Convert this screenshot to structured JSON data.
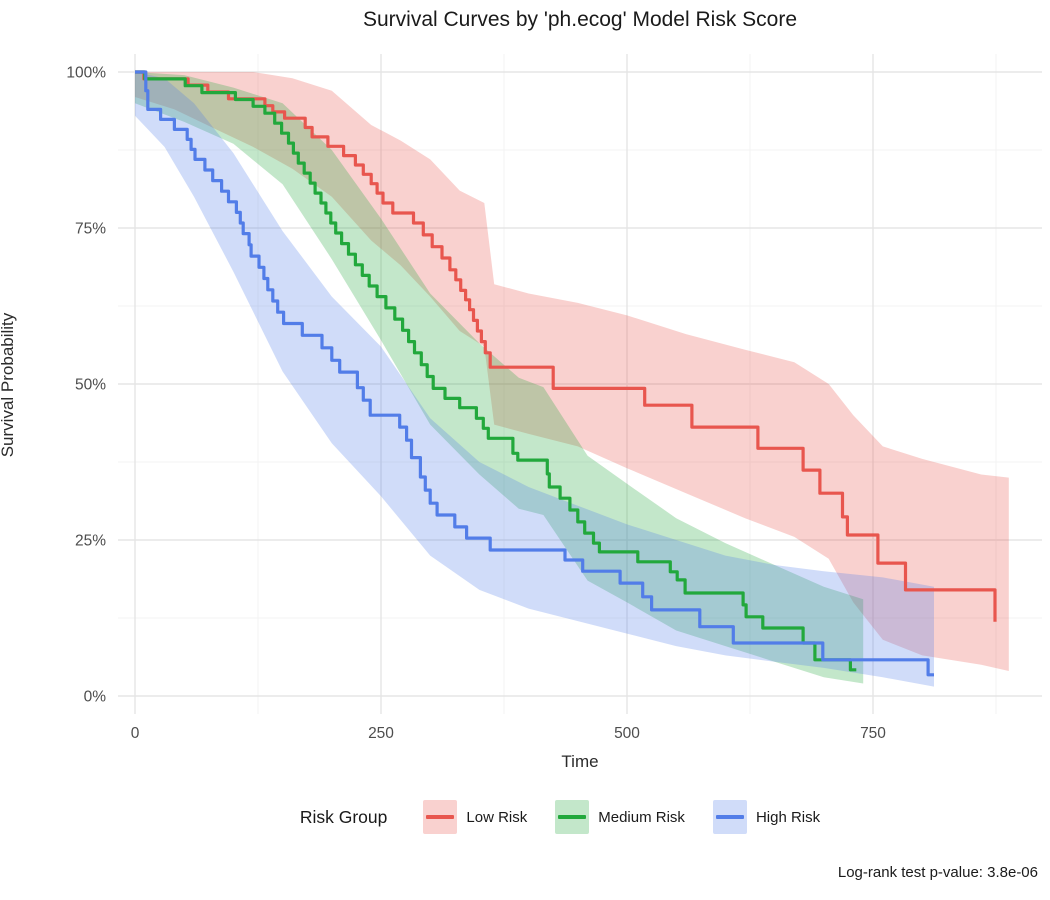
{
  "title": "Survival Curves by 'ph.ecog' Model Risk Score",
  "caption": "Log-rank test p-value: 3.8e-06",
  "x_axis": {
    "label": "Time",
    "ticks": [
      0,
      250,
      500,
      750
    ]
  },
  "y_axis": {
    "label": "Survival Probability",
    "ticks": [
      {
        "v": 0,
        "label": "0%"
      },
      {
        "v": 25,
        "label": "25%"
      },
      {
        "v": 50,
        "label": "50%"
      },
      {
        "v": 75,
        "label": "75%"
      },
      {
        "v": 100,
        "label": "100%"
      }
    ]
  },
  "legend": {
    "title": "Risk Group",
    "items": [
      {
        "label": "Low Risk"
      },
      {
        "label": "Medium Risk"
      },
      {
        "label": "High Risk"
      }
    ]
  },
  "chart_data": {
    "type": "line",
    "subtype": "kaplan-meier-step",
    "title": "Survival Curves by 'ph.ecog' Model Risk Score",
    "xlabel": "Time",
    "ylabel": "Survival Probability",
    "xlim": [
      -17,
      922
    ],
    "ylim": [
      -3,
      103
    ],
    "grid": "on",
    "legend_position": "bottom",
    "series": [
      {
        "name": "Low Risk",
        "color": "#E8564E",
        "fill": "rgba(232,86,78,0.27)",
        "start": [
          0,
          100
        ],
        "steps": [
          [
            9,
            98.9
          ],
          [
            54,
            97.9
          ],
          [
            74,
            96.8
          ],
          [
            95,
            95.7
          ],
          [
            132,
            94.6
          ],
          [
            140,
            93.6
          ],
          [
            152,
            92.6
          ],
          [
            173,
            91.1
          ],
          [
            180,
            89.6
          ],
          [
            196,
            88.1
          ],
          [
            212,
            86.6
          ],
          [
            224,
            85.1
          ],
          [
            232,
            83.6
          ],
          [
            240,
            82.1
          ],
          [
            246,
            80.6
          ],
          [
            252,
            79
          ],
          [
            262,
            77.4
          ],
          [
            283,
            75.8
          ],
          [
            293,
            73.9
          ],
          [
            302,
            72
          ],
          [
            312,
            70.2
          ],
          [
            320,
            68.3
          ],
          [
            326,
            66.7
          ],
          [
            331,
            65
          ],
          [
            336,
            63.5
          ],
          [
            340,
            61.9
          ],
          [
            344,
            60.2
          ],
          [
            348,
            58.5
          ],
          [
            352,
            56.8
          ],
          [
            356,
            55
          ],
          [
            361,
            52.7
          ],
          [
            425,
            49.3
          ],
          [
            518,
            46.6
          ],
          [
            566,
            43.1
          ],
          [
            633,
            39.7
          ],
          [
            679,
            36.2
          ],
          [
            696,
            32.5
          ],
          [
            719,
            28.7
          ],
          [
            724,
            25.8
          ],
          [
            755,
            21.3
          ],
          [
            783,
            17
          ],
          [
            874,
            11.9
          ]
        ],
        "end": 874,
        "ribbon": [
          [
            0,
            96,
            100
          ],
          [
            40,
            94,
            100
          ],
          [
            80,
            91,
            100
          ],
          [
            120,
            88,
            100
          ],
          [
            160,
            84.5,
            99
          ],
          [
            200,
            80,
            97
          ],
          [
            240,
            73,
            91.5
          ],
          [
            270,
            69,
            89
          ],
          [
            300,
            64,
            86
          ],
          [
            330,
            58.5,
            81
          ],
          [
            355,
            56,
            79
          ],
          [
            365,
            43.5,
            66
          ],
          [
            400,
            42,
            64.5
          ],
          [
            450,
            40,
            63
          ],
          [
            500,
            36.5,
            61
          ],
          [
            560,
            32.5,
            58
          ],
          [
            620,
            28.5,
            55.5
          ],
          [
            670,
            25.5,
            53.5
          ],
          [
            705,
            22,
            50
          ],
          [
            730,
            15,
            45
          ],
          [
            760,
            9,
            40
          ],
          [
            800,
            6.5,
            38
          ],
          [
            860,
            5,
            35.5
          ],
          [
            888,
            4,
            35
          ]
        ]
      },
      {
        "name": "Medium Risk",
        "color": "#22A83C",
        "fill": "rgba(34,168,60,0.27)",
        "start": [
          0,
          100
        ],
        "steps": [
          [
            10,
            98.9
          ],
          [
            51,
            97.8
          ],
          [
            68,
            96.7
          ],
          [
            102,
            95.6
          ],
          [
            120,
            94.5
          ],
          [
            132,
            93.4
          ],
          [
            142,
            91.8
          ],
          [
            149,
            90.2
          ],
          [
            156,
            88.6
          ],
          [
            161,
            87
          ],
          [
            166,
            85.4
          ],
          [
            172,
            83.8
          ],
          [
            178,
            82.2
          ],
          [
            183,
            80.6
          ],
          [
            189,
            79
          ],
          [
            194,
            77.4
          ],
          [
            199,
            75.8
          ],
          [
            204,
            74.2
          ],
          [
            210,
            72.5
          ],
          [
            217,
            70.8
          ],
          [
            224,
            69.1
          ],
          [
            231,
            67.4
          ],
          [
            238,
            65.7
          ],
          [
            246,
            64
          ],
          [
            255,
            62.2
          ],
          [
            264,
            60.4
          ],
          [
            272,
            58.6
          ],
          [
            278,
            56.8
          ],
          [
            284,
            55
          ],
          [
            291,
            53.1
          ],
          [
            297,
            51.2
          ],
          [
            303,
            49.3
          ],
          [
            315,
            47.7
          ],
          [
            330,
            46.2
          ],
          [
            347,
            44.5
          ],
          [
            354,
            42.9
          ],
          [
            359,
            41.3
          ],
          [
            384,
            38.9
          ],
          [
            389,
            37.8
          ],
          [
            419,
            35.6
          ],
          [
            421,
            33.5
          ],
          [
            432,
            31.7
          ],
          [
            442,
            29.8
          ],
          [
            450,
            27.9
          ],
          [
            457,
            26.1
          ],
          [
            466,
            24.5
          ],
          [
            472,
            23.1
          ],
          [
            511,
            21.5
          ],
          [
            544,
            19.9
          ],
          [
            551,
            18.6
          ],
          [
            559,
            16.5
          ],
          [
            618,
            14.6
          ],
          [
            621,
            12.7
          ],
          [
            638,
            10.9
          ],
          [
            679,
            8.5
          ],
          [
            691,
            5.8
          ],
          [
            727,
            4.2
          ]
        ],
        "end": 733,
        "ribbon": [
          [
            0,
            95,
            100
          ],
          [
            50,
            92,
            99.5
          ],
          [
            100,
            88.5,
            97.5
          ],
          [
            150,
            82,
            95
          ],
          [
            200,
            70,
            87.5
          ],
          [
            250,
            57,
            76.5
          ],
          [
            300,
            43.5,
            64.5
          ],
          [
            350,
            35.5,
            56.5
          ],
          [
            390,
            30,
            51
          ],
          [
            415,
            29,
            49.5
          ],
          [
            460,
            18.5,
            38.5
          ],
          [
            500,
            15,
            34
          ],
          [
            550,
            10.5,
            28.5
          ],
          [
            600,
            8,
            24.5
          ],
          [
            650,
            5.5,
            21
          ],
          [
            700,
            3,
            17.5
          ],
          [
            740,
            2,
            15.5
          ]
        ]
      },
      {
        "name": "High Risk",
        "color": "#527DE8",
        "fill": "rgba(82,125,232,0.27)",
        "start": [
          0,
          100
        ],
        "steps": [
          [
            11,
            97
          ],
          [
            13,
            94
          ],
          [
            26,
            92.4
          ],
          [
            40,
            90.8
          ],
          [
            53,
            89.2
          ],
          [
            57,
            87.6
          ],
          [
            61,
            86
          ],
          [
            71,
            84.3
          ],
          [
            79,
            82.6
          ],
          [
            88,
            80.9
          ],
          [
            95,
            79.2
          ],
          [
            103,
            77.5
          ],
          [
            107,
            75.8
          ],
          [
            110,
            74.1
          ],
          [
            116,
            72.3
          ],
          [
            118,
            70.5
          ],
          [
            126,
            68.7
          ],
          [
            131,
            66.9
          ],
          [
            135,
            65.1
          ],
          [
            140,
            63.3
          ],
          [
            145,
            61.5
          ],
          [
            151,
            59.7
          ],
          [
            170,
            57.8
          ],
          [
            190,
            55.8
          ],
          [
            200,
            53.8
          ],
          [
            208,
            51.9
          ],
          [
            226,
            49.4
          ],
          [
            232,
            47.4
          ],
          [
            239,
            45
          ],
          [
            269,
            43.1
          ],
          [
            276,
            41
          ],
          [
            281,
            38.2
          ],
          [
            290,
            35.1
          ],
          [
            295,
            33
          ],
          [
            300,
            30.9
          ],
          [
            307,
            29
          ],
          [
            325,
            27.1
          ],
          [
            337,
            25.3
          ],
          [
            361,
            23.4
          ],
          [
            437,
            21.8
          ],
          [
            455,
            20
          ],
          [
            493,
            18.1
          ],
          [
            516,
            15.9
          ],
          [
            525,
            13.8
          ],
          [
            574,
            11.1
          ],
          [
            608,
            8.5
          ],
          [
            699,
            5.8
          ],
          [
            806,
            3.4
          ]
        ],
        "end": 812,
        "ribbon": [
          [
            0,
            93,
            100
          ],
          [
            30,
            88,
            99
          ],
          [
            60,
            80,
            95
          ],
          [
            100,
            68,
            87
          ],
          [
            150,
            52,
            74.5
          ],
          [
            200,
            40.5,
            64
          ],
          [
            250,
            32,
            56
          ],
          [
            300,
            22.5,
            44.5
          ],
          [
            350,
            17,
            37.5
          ],
          [
            400,
            14,
            33.5
          ],
          [
            450,
            12,
            30.5
          ],
          [
            500,
            10,
            27.5
          ],
          [
            550,
            8,
            25
          ],
          [
            600,
            6.5,
            22.5
          ],
          [
            650,
            5.5,
            21
          ],
          [
            700,
            4.5,
            20
          ],
          [
            760,
            3,
            19
          ],
          [
            812,
            1.5,
            17.5
          ]
        ]
      }
    ]
  }
}
